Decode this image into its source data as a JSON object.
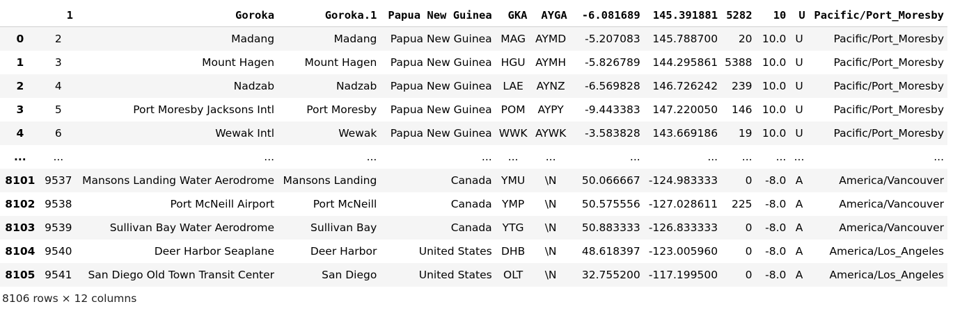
{
  "columns": [
    "",
    "1",
    "Goroka",
    "Goroka.1",
    "Papua New Guinea",
    "GKA",
    "AYGA",
    "-6.081689",
    "145.391881",
    "5282",
    "10",
    "U",
    "Pacific/Port_Moresby"
  ],
  "rows": [
    [
      "0",
      "2",
      "Madang",
      "Madang",
      "Papua New Guinea",
      "MAG",
      "AYMD",
      "-5.207083",
      "145.788700",
      "20",
      "10.0",
      "U",
      "Pacific/Port_Moresby"
    ],
    [
      "1",
      "3",
      "Mount Hagen",
      "Mount Hagen",
      "Papua New Guinea",
      "HGU",
      "AYMH",
      "-5.826789",
      "144.295861",
      "5388",
      "10.0",
      "U",
      "Pacific/Port_Moresby"
    ],
    [
      "2",
      "4",
      "Nadzab",
      "Nadzab",
      "Papua New Guinea",
      "LAE",
      "AYNZ",
      "-6.569828",
      "146.726242",
      "239",
      "10.0",
      "U",
      "Pacific/Port_Moresby"
    ],
    [
      "3",
      "5",
      "Port Moresby Jacksons Intl",
      "Port Moresby",
      "Papua New Guinea",
      "POM",
      "AYPY",
      "-9.443383",
      "147.220050",
      "146",
      "10.0",
      "U",
      "Pacific/Port_Moresby"
    ],
    [
      "4",
      "6",
      "Wewak Intl",
      "Wewak",
      "Papua New Guinea",
      "WWK",
      "AYWK",
      "-3.583828",
      "143.669186",
      "19",
      "10.0",
      "U",
      "Pacific/Port_Moresby"
    ],
    [
      "...",
      "...",
      "...",
      "...",
      "...",
      "...",
      "...",
      "...",
      "...",
      "...",
      "...",
      "...",
      "..."
    ],
    [
      "8101",
      "9537",
      "Mansons Landing Water Aerodrome",
      "Mansons Landing",
      "Canada",
      "YMU",
      "\\N",
      "50.066667",
      "-124.983333",
      "0",
      "-8.0",
      "A",
      "America/Vancouver"
    ],
    [
      "8102",
      "9538",
      "Port McNeill Airport",
      "Port McNeill",
      "Canada",
      "YMP",
      "\\N",
      "50.575556",
      "-127.028611",
      "225",
      "-8.0",
      "A",
      "America/Vancouver"
    ],
    [
      "8103",
      "9539",
      "Sullivan Bay Water Aerodrome",
      "Sullivan Bay",
      "Canada",
      "YTG",
      "\\N",
      "50.883333",
      "-126.833333",
      "0",
      "-8.0",
      "A",
      "America/Vancouver"
    ],
    [
      "8104",
      "9540",
      "Deer Harbor Seaplane",
      "Deer Harbor",
      "United States",
      "DHB",
      "\\N",
      "48.618397",
      "-123.005960",
      "0",
      "-8.0",
      "A",
      "America/Los_Angeles"
    ],
    [
      "8105",
      "9541",
      "San Diego Old Town Transit Center",
      "San Diego",
      "United States",
      "OLT",
      "\\N",
      "32.755200",
      "-117.199500",
      "0",
      "-8.0",
      "A",
      "America/Los_Angeles"
    ]
  ],
  "shape_text": "8106 rows × 12 columns"
}
